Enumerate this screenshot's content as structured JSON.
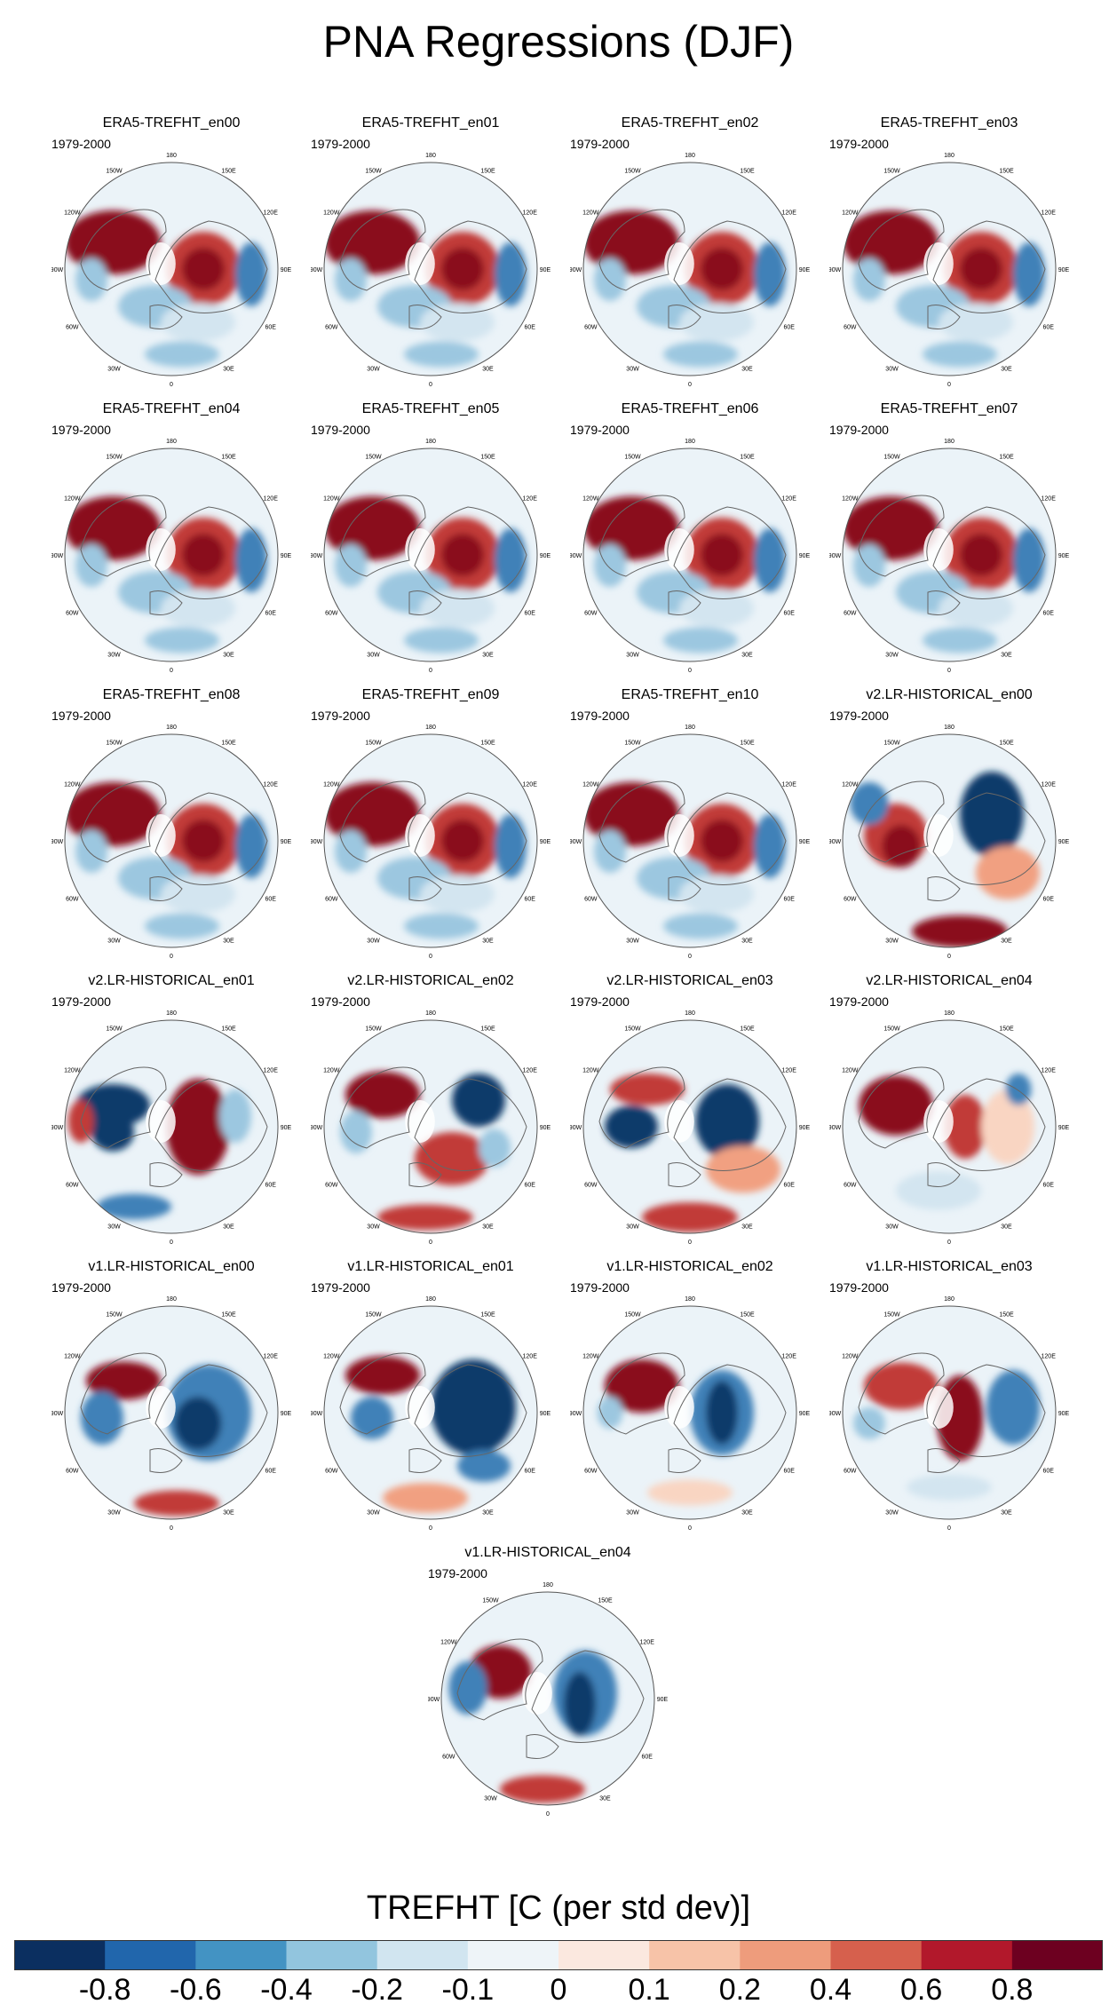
{
  "title": "PNA Regressions (DJF)",
  "period_label": "1979-2000",
  "lon_labels": [
    "180",
    "150E",
    "120E",
    "90E",
    "60E",
    "30E",
    "0",
    "30W",
    "60W",
    "90W",
    "120W",
    "150W"
  ],
  "panels": [
    {
      "title": "ERA5-TREFHT_en00",
      "pattern": "era5"
    },
    {
      "title": "ERA5-TREFHT_en01",
      "pattern": "era5"
    },
    {
      "title": "ERA5-TREFHT_en02",
      "pattern": "era5"
    },
    {
      "title": "ERA5-TREFHT_en03",
      "pattern": "era5"
    },
    {
      "title": "ERA5-TREFHT_en04",
      "pattern": "era5"
    },
    {
      "title": "ERA5-TREFHT_en05",
      "pattern": "era5"
    },
    {
      "title": "ERA5-TREFHT_en06",
      "pattern": "era5"
    },
    {
      "title": "ERA5-TREFHT_en07",
      "pattern": "era5"
    },
    {
      "title": "ERA5-TREFHT_en08",
      "pattern": "era5"
    },
    {
      "title": "ERA5-TREFHT_en09",
      "pattern": "era5"
    },
    {
      "title": "ERA5-TREFHT_en10",
      "pattern": "era5"
    },
    {
      "title": "v2.LR-HISTORICAL_en00",
      "pattern": "v2a"
    },
    {
      "title": "v2.LR-HISTORICAL_en01",
      "pattern": "v2b"
    },
    {
      "title": "v2.LR-HISTORICAL_en02",
      "pattern": "v2c"
    },
    {
      "title": "v2.LR-HISTORICAL_en03",
      "pattern": "v2d"
    },
    {
      "title": "v2.LR-HISTORICAL_en04",
      "pattern": "v2e"
    },
    {
      "title": "v1.LR-HISTORICAL_en00",
      "pattern": "v1a"
    },
    {
      "title": "v1.LR-HISTORICAL_en01",
      "pattern": "v1b"
    },
    {
      "title": "v1.LR-HISTORICAL_en02",
      "pattern": "v1c"
    },
    {
      "title": "v1.LR-HISTORICAL_en03",
      "pattern": "v1d"
    },
    {
      "title": "v1.LR-HISTORICAL_en04",
      "pattern": "v1e"
    }
  ],
  "colorbar": {
    "title": "TREFHT [C (per std dev)]",
    "colors": [
      "#0b2f60",
      "#2166ac",
      "#4393c3",
      "#92c5de",
      "#d1e5f0",
      "#eef4f8",
      "#fbe8df",
      "#f7c3a8",
      "#ee9c7c",
      "#d6604d",
      "#b2182b",
      "#6d0020"
    ],
    "labels": [
      "-0.8",
      "-0.6",
      "-0.4",
      "-0.2",
      "-0.1",
      "0",
      "0.1",
      "0.2",
      "0.4",
      "0.6",
      "0.8"
    ]
  },
  "palette": {
    "deep_red": "#8a0a1f",
    "red": "#c13a38",
    "light_red": "#f1a081",
    "pale_red": "#f9d5c2",
    "deep_blue": "#0e3a6b",
    "blue": "#3f81b8",
    "light_blue": "#9cc7e0",
    "pale_blue": "#d3e5f0",
    "land_line": "#666666"
  }
}
